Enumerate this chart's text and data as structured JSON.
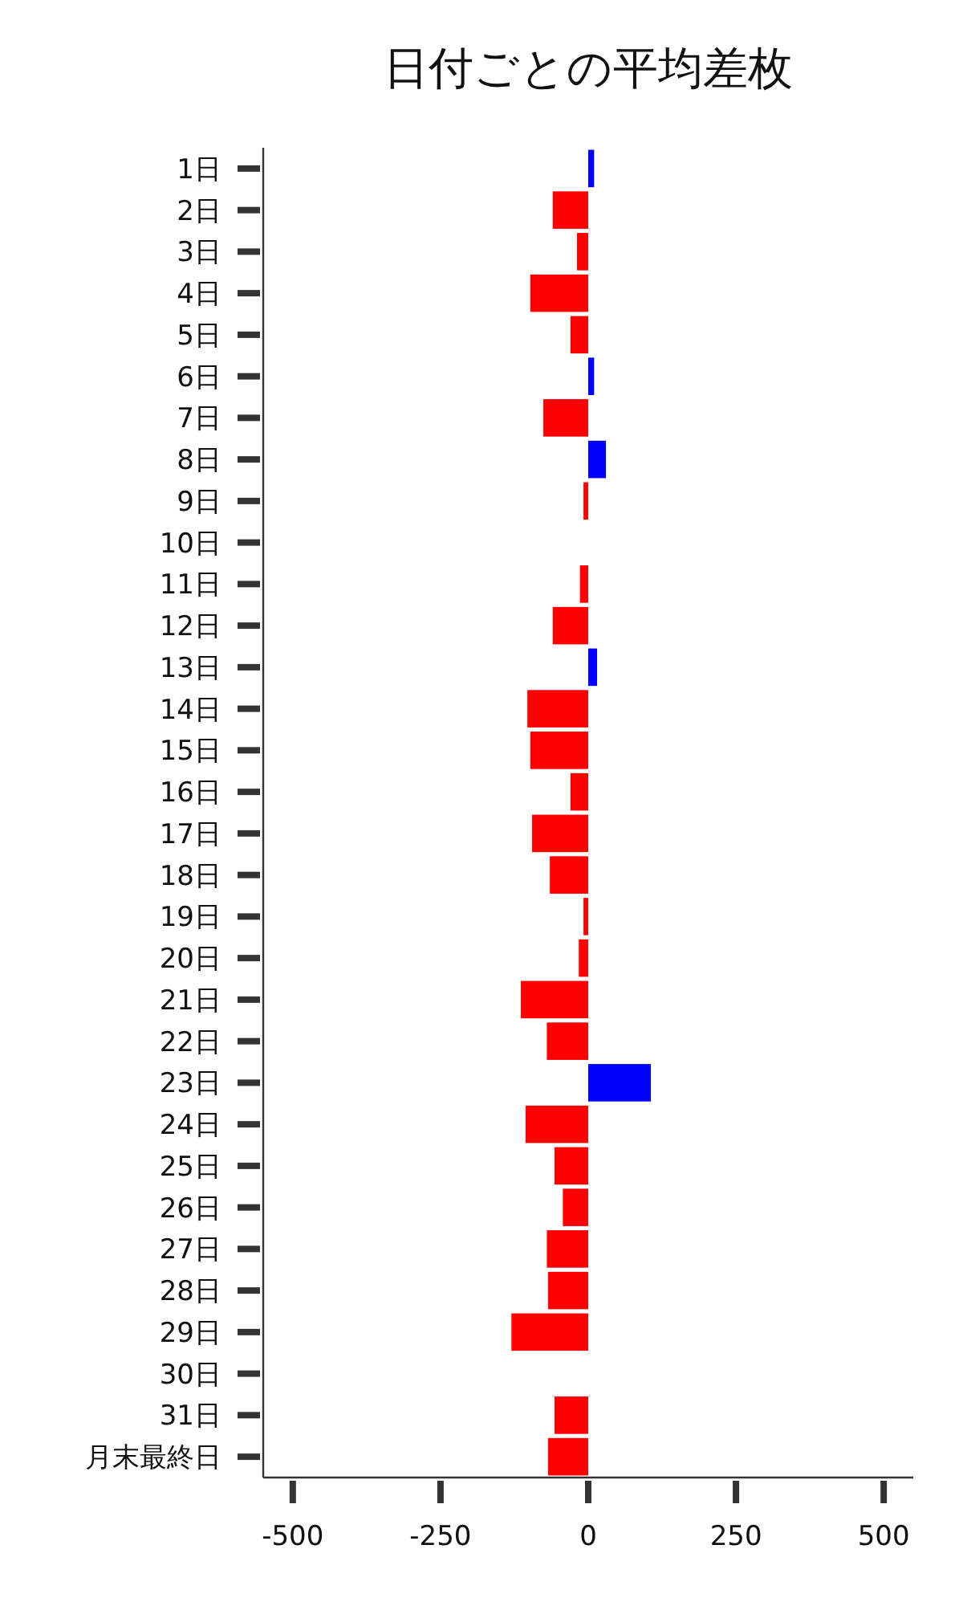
{
  "chart_data": {
    "type": "bar",
    "orientation": "horizontal",
    "title": "日付ごとの平均差枚",
    "categories": [
      "1日",
      "2日",
      "3日",
      "4日",
      "5日",
      "6日",
      "7日",
      "8日",
      "9日",
      "10日",
      "11日",
      "12日",
      "13日",
      "14日",
      "15日",
      "16日",
      "17日",
      "18日",
      "19日",
      "20日",
      "21日",
      "22日",
      "23日",
      "24日",
      "25日",
      "26日",
      "27日",
      "28日",
      "29日",
      "30日",
      "31日",
      "月末最終日"
    ],
    "values": [
      10,
      -60,
      -19,
      -98,
      -30,
      10,
      -76,
      30,
      -8,
      0,
      -14,
      -60,
      15,
      -103,
      -98,
      -30,
      -95,
      -65,
      -8,
      -16,
      -114,
      -70,
      106,
      -106,
      -57,
      -43,
      -70,
      -68,
      -130,
      0,
      -57,
      -68
    ],
    "colors": [
      "#0000ff",
      "#ff0000",
      "#ff0000",
      "#ff0000",
      "#ff0000",
      "#0000ff",
      "#ff0000",
      "#0000ff",
      "#ff0000",
      "#ff0000",
      "#ff0000",
      "#ff0000",
      "#0000ff",
      "#ff0000",
      "#ff0000",
      "#ff0000",
      "#ff0000",
      "#ff0000",
      "#ff0000",
      "#ff0000",
      "#ff0000",
      "#ff0000",
      "#0000ff",
      "#ff0000",
      "#ff0000",
      "#ff0000",
      "#ff0000",
      "#ff0000",
      "#ff0000",
      "#ff0000",
      "#ff0000",
      "#ff0000"
    ],
    "xlim": [
      -550,
      550
    ],
    "xticks": [
      -500,
      -250,
      0,
      250,
      500
    ]
  }
}
